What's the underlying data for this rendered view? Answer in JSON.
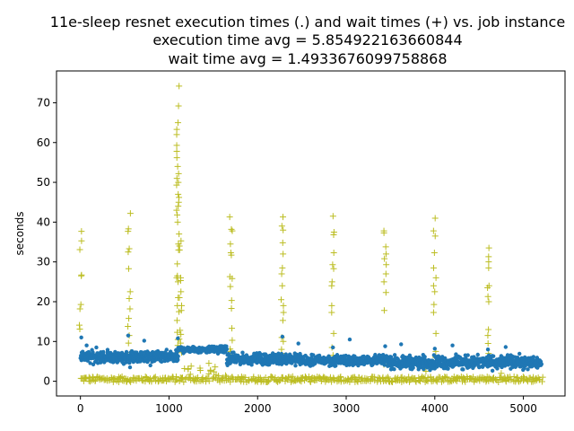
{
  "chart_data": {
    "type": "scatter",
    "title": "11e-sleep resnet execution times (.) and wait times (+) vs. job instance",
    "subtitle_lines": [
      "execution time avg = 5.854922163660844",
      "wait time avg = 1.4933676099758868"
    ],
    "xlabel": "",
    "ylabel": "seconds",
    "xlim": [
      -270,
      5470
    ],
    "ylim": [
      -3.7,
      78.0
    ],
    "xticks": [
      0,
      1000,
      2000,
      3000,
      4000,
      5000
    ],
    "yticks": [
      0,
      10,
      20,
      30,
      40,
      50,
      60,
      70
    ],
    "grid": false,
    "n_jobs": 5200,
    "colors": {
      "execution": "#1f77b4",
      "wait": "#bcbd22"
    },
    "series": [
      {
        "marker": "dot",
        "segments": [
          {
            "x_range": [
              0,
              1100
            ],
            "y_center": 6.1,
            "spread": 1.2
          },
          {
            "x_range": [
              1100,
              1650
            ],
            "y_center": 8.0,
            "spread": 0.7
          },
          {
            "x_range": [
              1650,
              2500
            ],
            "y_center": 5.6,
            "spread": 1.1
          },
          {
            "x_range": [
              2500,
              3500
            ],
            "y_center": 5.2,
            "spread": 1.0
          },
          {
            "x_range": [
              3500,
              5200
            ],
            "y_center": 4.8,
            "spread": 1.3
          }
        ],
        "outliers": [
          {
            "x": 10,
            "y": 11.0
          },
          {
            "x": 70,
            "y": 9.0
          },
          {
            "x": 180,
            "y": 8.5
          },
          {
            "x": 540,
            "y": 11.5
          },
          {
            "x": 560,
            "y": 3.5
          },
          {
            "x": 720,
            "y": 10.2
          },
          {
            "x": 790,
            "y": 4.0
          },
          {
            "x": 1100,
            "y": 10.8
          },
          {
            "x": 1690,
            "y": 4.5
          },
          {
            "x": 2280,
            "y": 11.2
          },
          {
            "x": 2460,
            "y": 9.5
          },
          {
            "x": 2850,
            "y": 8.5
          },
          {
            "x": 3040,
            "y": 10.5
          },
          {
            "x": 3440,
            "y": 8.8
          },
          {
            "x": 3620,
            "y": 9.3
          },
          {
            "x": 4000,
            "y": 8.2
          },
          {
            "x": 4200,
            "y": 9.0
          },
          {
            "x": 4600,
            "y": 8.0
          },
          {
            "x": 4800,
            "y": 8.6
          },
          {
            "x": 4310,
            "y": 3.0
          },
          {
            "x": 5050,
            "y": 3.0
          }
        ]
      },
      {
        "marker": "plus",
        "baseline": {
          "x_range": [
            0,
            5200
          ],
          "y_center": 0.5,
          "spread": 0.7
        },
        "bump": {
          "x_range": [
            1130,
            1650
          ],
          "y_max": 3.5
        },
        "spikes": [
          {
            "x": 0,
            "values": [
              37.7,
              35.3,
              33.1,
              26.7,
              26.5,
              19.3,
              18.2,
              14.1,
              13.1
            ]
          },
          {
            "x": 550,
            "values": [
              42.2,
              38.3,
              37.7,
              33.3,
              32.5,
              28.3,
              22.5,
              20.8,
              18.2,
              15.8,
              13.8,
              11.5,
              9.6,
              7.2
            ]
          },
          {
            "x": 1100,
            "values": [
              74.2,
              69.2,
              65.0,
              63.3,
              62.0,
              59.3,
              57.8,
              56.2,
              54.0,
              52.2,
              51.0,
              50.0,
              49.3,
              47.0,
              46.2,
              45.0,
              44.0,
              43.0,
              41.8,
              40.0,
              37.0,
              34.5,
              33.0,
              29.5,
              26.5,
              26.0,
              25.0,
              21.0,
              19.0,
              17.5,
              15.3,
              12.3,
              10.5,
              9.0
            ]
          },
          {
            "x": 1130,
            "values": [
              35.3,
              34.0,
              33.0,
              26.0,
              25.3,
              22.5,
              21.0,
              19.0,
              17.8,
              12.8,
              11.8,
              10.6,
              9.6,
              8.2,
              7.2
            ]
          },
          {
            "x": 1700,
            "values": [
              41.3,
              38.2,
              37.8,
              34.5,
              32.3,
              31.7,
              26.3,
              25.8,
              23.8,
              20.3,
              18.3,
              13.3,
              10.3,
              8.1,
              7.5,
              5.3
            ]
          },
          {
            "x": 2280,
            "values": [
              41.3,
              39.0,
              38.0,
              34.8,
              32.0,
              28.5,
              27.0,
              24.0,
              20.5,
              19.0,
              17.3,
              15.3,
              11.0,
              10.0,
              8.0,
              7.0
            ]
          },
          {
            "x": 2850,
            "values": [
              41.5,
              37.5,
              36.8,
              32.3,
              29.3,
              28.3,
              25.0,
              24.0,
              19.0,
              17.3,
              12.0,
              8.5,
              6.5,
              5.5
            ]
          },
          {
            "x": 3440,
            "values": [
              37.8,
              37.3,
              33.8,
              32.0,
              30.8,
              29.3,
              27.0,
              25.0,
              22.3,
              17.8,
              4.2
            ]
          },
          {
            "x": 4000,
            "values": [
              41.0,
              37.8,
              36.5,
              32.3,
              28.5,
              26.0,
              24.0,
              22.5,
              19.3,
              17.3,
              12.0,
              7.5,
              6.0
            ]
          },
          {
            "x": 4610,
            "values": [
              33.5,
              31.3,
              30.0,
              28.5,
              24.0,
              23.5,
              21.3,
              20.0,
              13.0,
              11.5,
              9.5,
              7.0,
              5.5
            ]
          }
        ],
        "scattered": [
          {
            "x": 1450,
            "y": 4.5
          },
          {
            "x": 1520,
            "y": 3.6
          },
          {
            "x": 1350,
            "y": 3.3
          },
          {
            "x": 1250,
            "y": 3.8
          },
          {
            "x": 3900,
            "y": 2.5
          },
          {
            "x": 4750,
            "y": 2.0
          }
        ]
      }
    ]
  }
}
